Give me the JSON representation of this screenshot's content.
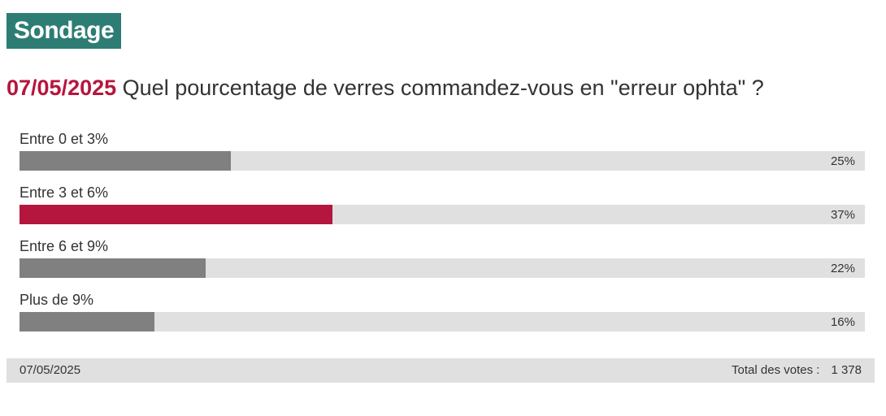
{
  "badge": {
    "label": "Sondage"
  },
  "question": {
    "date": "07/05/2025",
    "text": "Quel pourcentage de verres commandez-vous en \"erreur ophta\" ?"
  },
  "colors": {
    "badge": "#2e7d74",
    "highlight": "#b5163d",
    "bar": "#808080",
    "track": "#e0e0e0"
  },
  "chart_data": {
    "type": "bar",
    "orientation": "horizontal",
    "categories": [
      "Entre 0 et 3%",
      "Entre 3 et 6%",
      "Entre 6 et 9%",
      "Plus de 9%"
    ],
    "values": [
      25,
      37,
      22,
      16
    ],
    "value_labels": [
      "25%",
      "37%",
      "22%",
      "16%"
    ],
    "highlighted_index": 1,
    "xlim": [
      0,
      100
    ]
  },
  "footer": {
    "date": "07/05/2025",
    "total_label": "Total des votes :",
    "total_value": "1 378"
  }
}
